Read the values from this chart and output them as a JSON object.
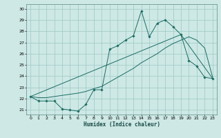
{
  "xlabel": "Humidex (Indice chaleur)",
  "xlim": [
    -0.5,
    23.5
  ],
  "ylim": [
    20.6,
    30.4
  ],
  "xticks": [
    0,
    1,
    2,
    3,
    4,
    5,
    6,
    7,
    8,
    9,
    10,
    11,
    12,
    13,
    14,
    15,
    16,
    17,
    18,
    19,
    20,
    21,
    22,
    23
  ],
  "yticks": [
    21,
    22,
    23,
    24,
    25,
    26,
    27,
    28,
    29,
    30
  ],
  "bg_color": "#cde8e5",
  "grid_color": "#9dc8c4",
  "line_color": "#1a6b62",
  "line1_x": [
    0,
    1,
    2,
    3,
    4,
    5,
    6,
    7,
    8,
    9,
    10,
    11,
    12,
    13,
    14,
    15,
    16,
    17,
    18,
    19,
    20,
    21,
    22,
    23
  ],
  "line1_y": [
    22.2,
    21.8,
    21.8,
    21.8,
    21.1,
    21.0,
    20.9,
    21.5,
    22.8,
    22.8,
    26.4,
    26.7,
    27.2,
    27.6,
    29.8,
    27.5,
    28.7,
    29.0,
    28.4,
    27.7,
    25.4,
    24.9,
    23.9,
    23.8
  ],
  "line2_x": [
    0,
    1,
    2,
    3,
    4,
    5,
    6,
    7,
    8,
    9,
    10,
    11,
    12,
    13,
    14,
    15,
    16,
    17,
    18,
    19,
    20,
    21,
    22,
    23
  ],
  "line2_y": [
    22.2,
    22.1,
    22.1,
    22.2,
    22.3,
    22.4,
    22.5,
    22.65,
    22.9,
    23.1,
    23.5,
    23.9,
    24.3,
    24.7,
    25.2,
    25.6,
    26.0,
    26.5,
    26.9,
    27.2,
    27.5,
    27.2,
    26.5,
    23.9
  ],
  "line3_x": [
    0,
    19,
    23
  ],
  "line3_y": [
    22.2,
    27.7,
    23.8
  ]
}
